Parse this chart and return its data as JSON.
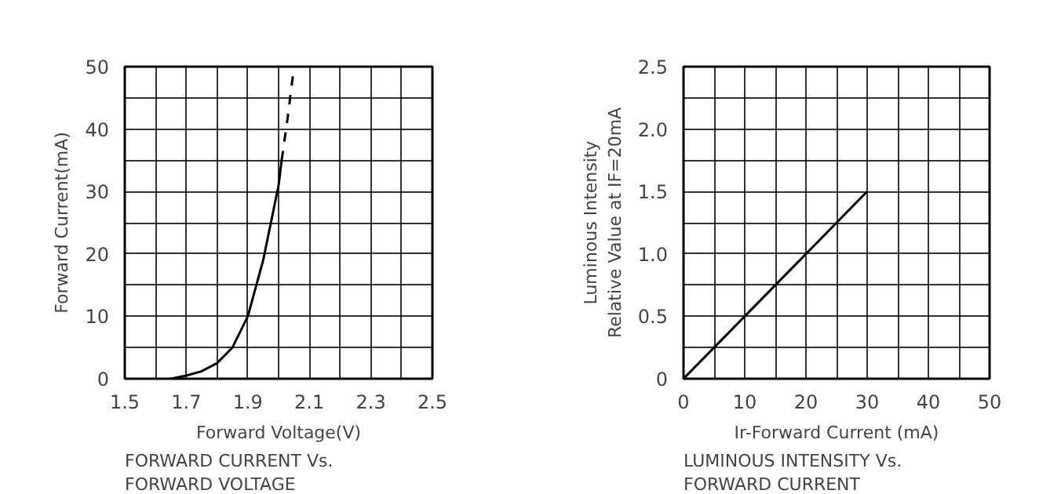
{
  "chart_data": [
    {
      "type": "line",
      "xlabel": "Forward Voltage(V)",
      "ylabel": "Forward Current(mA)",
      "annotations": [
        "FORWARD CURRENT Vs.",
        "FORWARD VOLTAGE"
      ],
      "series": [
        {
          "color": "#000000",
          "line_style": "solid",
          "x": [
            1.65,
            1.7,
            1.75,
            1.8,
            1.85,
            1.9,
            1.95,
            2.0,
            2.01
          ],
          "values": [
            0,
            0.5,
            1.2,
            2.5,
            5,
            10,
            19,
            31,
            35
          ]
        },
        {
          "color": "#000000",
          "line_style": "dashed",
          "x": [
            2.01,
            2.03,
            2.05
          ],
          "values": [
            35,
            42,
            50
          ]
        }
      ],
      "xlim": [
        1.5,
        2.5
      ],
      "ylim": [
        0,
        50
      ],
      "xticks": [
        1.5,
        {
          "value": 1.6,
          "label": null
        },
        1.7,
        {
          "value": 1.8,
          "label": null
        },
        1.9,
        {
          "value": 2.0,
          "label": null
        },
        2.1,
        {
          "value": 2.2,
          "label": null
        },
        2.3,
        {
          "value": 2.4,
          "label": null
        },
        2.5
      ],
      "yticks": [
        0,
        {
          "value": 5,
          "label": null
        },
        10,
        {
          "value": 15,
          "label": null
        },
        20,
        {
          "value": 25,
          "label": null
        },
        30,
        {
          "value": 35,
          "label": null
        },
        40,
        {
          "value": 45,
          "label": null
        },
        50
      ],
      "grid": true
    },
    {
      "type": "line",
      "xlabel": "Ir-Forward Current (mA)",
      "ylabel": "Luminous Intensity\nRelative Value at IF=20mA",
      "annotations": [
        "LUMINOUS INTENSITY Vs.",
        "FORWARD CURRENT"
      ],
      "series": [
        {
          "color": "#000000",
          "line_style": "solid",
          "x": [
            0,
            30
          ],
          "values": [
            0,
            1.5
          ]
        }
      ],
      "xlim": [
        0,
        50
      ],
      "ylim": [
        0,
        2.5
      ],
      "xticks": [
        0,
        {
          "value": 5,
          "label": null
        },
        10,
        {
          "value": 15,
          "label": null
        },
        20,
        {
          "value": 25,
          "label": null
        },
        30,
        {
          "value": 35,
          "label": null
        },
        40,
        {
          "value": 45,
          "label": null
        },
        50
      ],
      "yticks": [
        0,
        {
          "value": 0.25,
          "label": null
        },
        0.5,
        {
          "value": 0.75,
          "label": null
        },
        {
          "value": 1.0,
          "label": "1.0"
        },
        {
          "value": 1.25,
          "label": null
        },
        1.5,
        {
          "value": 1.75,
          "label": null
        },
        {
          "value": 2.0,
          "label": "2.0"
        },
        {
          "value": 2.25,
          "label": null
        },
        2.5
      ],
      "grid": true
    }
  ]
}
